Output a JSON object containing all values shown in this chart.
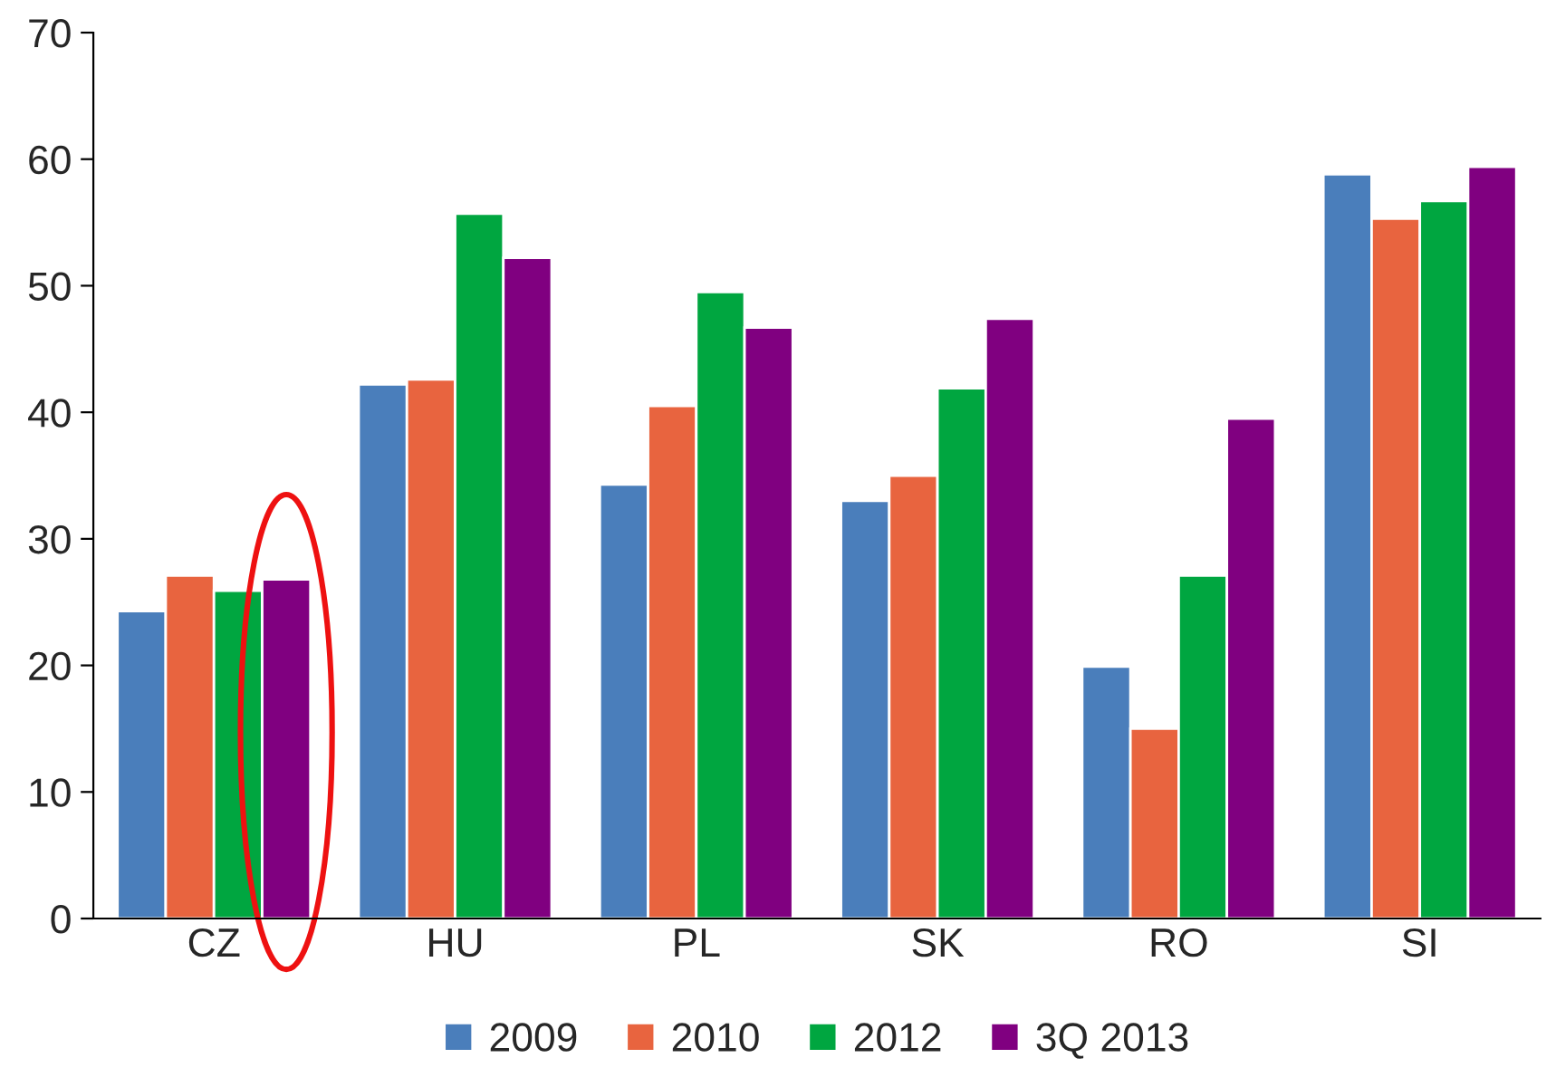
{
  "chart_data": {
    "type": "bar",
    "categories": [
      "CZ",
      "HU",
      "PL",
      "SK",
      "RO",
      "SI"
    ],
    "series": [
      {
        "name": "2009",
        "color": "#4a7ebb",
        "values": [
          24.3,
          42.2,
          34.3,
          33.0,
          19.9,
          58.8
        ]
      },
      {
        "name": "2010",
        "color": "#e8643f",
        "values": [
          27.1,
          42.6,
          40.5,
          35.0,
          15.0,
          55.3
        ]
      },
      {
        "name": "2012",
        "color": "#00a640",
        "values": [
          25.9,
          55.7,
          49.5,
          41.9,
          27.1,
          56.7
        ]
      },
      {
        "name": "3Q 2013",
        "color": "#800080",
        "values": [
          26.8,
          52.2,
          46.7,
          47.4,
          39.5,
          59.4
        ]
      }
    ],
    "ylim": [
      0,
      70
    ],
    "yticks": [
      0,
      10,
      20,
      30,
      40,
      50,
      60,
      70
    ],
    "grid": false,
    "legend": "bottom"
  }
}
